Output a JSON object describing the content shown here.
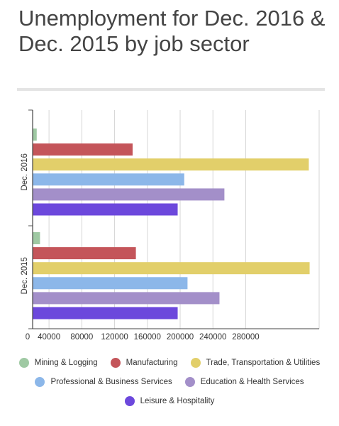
{
  "chart_data": {
    "type": "bar",
    "orientation": "horizontal",
    "title": "Unemployment for Dec. 2016 & Dec. 2015 by job sector",
    "categories": [
      "Dec. 2016",
      "Dec. 2015"
    ],
    "series": [
      {
        "name": "Mining & Logging",
        "color": "#9fc9a3",
        "values": [
          25000,
          29000
        ]
      },
      {
        "name": "Manufacturing",
        "color": "#c4555a",
        "values": [
          142000,
          146000
        ]
      },
      {
        "name": "Trade, Transportation & Utilities",
        "color": "#e2cf6a",
        "values": [
          357000,
          358000
        ]
      },
      {
        "name": "Professional & Business Services",
        "color": "#8cb7e9",
        "values": [
          205000,
          209000
        ]
      },
      {
        "name": "Education & Health Services",
        "color": "#a38fc9",
        "values": [
          254000,
          248000
        ]
      },
      {
        "name": "Leisure & Hospitality",
        "color": "#6c48dc",
        "values": [
          197000,
          197000
        ]
      }
    ],
    "xlim": [
      20000,
      380000
    ],
    "x_ticks": [
      0,
      40000,
      80000,
      120000,
      160000,
      200000,
      240000,
      280000
    ],
    "grid": true,
    "legend_position": "bottom"
  }
}
